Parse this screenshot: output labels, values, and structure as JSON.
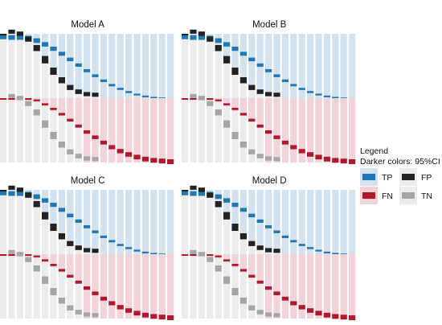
{
  "chart_data": {
    "type": "bar",
    "description_free": true,
    "n_thresholds": 21,
    "ylim_upper": [
      0,
      1
    ],
    "ylim_lower": [
      0,
      1
    ],
    "panels": [
      {
        "title": "Model A",
        "tp": [
          0.99,
          0.98,
          0.98,
          0.97,
          0.93,
          0.87,
          0.8,
          0.72,
          0.63,
          0.54,
          0.45,
          0.37,
          0.29,
          0.22,
          0.16,
          0.11,
          0.07,
          0.04,
          0.02,
          0.01,
          0.0
        ],
        "fp": [
          1.0,
          0.99,
          0.96,
          0.88,
          0.75,
          0.58,
          0.4,
          0.25,
          0.13,
          0.06,
          0.02,
          0.01,
          0.0,
          0.0,
          0.0,
          0.0,
          0.0,
          0.0,
          0.0,
          0.0,
          0.0
        ],
        "fn": [
          0.01,
          0.02,
          0.02,
          0.03,
          0.07,
          0.13,
          0.2,
          0.28,
          0.37,
          0.46,
          0.55,
          0.63,
          0.71,
          0.78,
          0.84,
          0.89,
          0.93,
          0.96,
          0.98,
          0.99,
          1.0
        ],
        "tn": [
          0.0,
          0.01,
          0.04,
          0.12,
          0.25,
          0.42,
          0.6,
          0.75,
          0.87,
          0.94,
          0.98,
          0.99,
          1.0,
          1.0,
          1.0,
          1.0,
          1.0,
          1.0,
          1.0,
          1.0,
          1.0
        ]
      },
      {
        "title": "Model B",
        "tp": [
          0.99,
          0.98,
          0.98,
          0.97,
          0.93,
          0.87,
          0.8,
          0.72,
          0.63,
          0.54,
          0.45,
          0.37,
          0.29,
          0.22,
          0.16,
          0.11,
          0.07,
          0.04,
          0.02,
          0.01,
          0.0
        ],
        "fp": [
          1.0,
          0.99,
          0.96,
          0.88,
          0.75,
          0.58,
          0.4,
          0.25,
          0.13,
          0.06,
          0.02,
          0.01,
          0.0,
          0.0,
          0.0,
          0.0,
          0.0,
          0.0,
          0.0,
          0.0,
          0.0
        ],
        "fn": [
          0.01,
          0.02,
          0.02,
          0.03,
          0.07,
          0.13,
          0.2,
          0.28,
          0.37,
          0.46,
          0.55,
          0.63,
          0.71,
          0.78,
          0.84,
          0.89,
          0.93,
          0.96,
          0.98,
          0.99,
          1.0
        ],
        "tn": [
          0.0,
          0.01,
          0.04,
          0.12,
          0.25,
          0.42,
          0.6,
          0.75,
          0.87,
          0.94,
          0.98,
          0.99,
          1.0,
          1.0,
          1.0,
          1.0,
          1.0,
          1.0,
          1.0,
          1.0,
          1.0
        ]
      },
      {
        "title": "Model C",
        "tp": [
          0.99,
          0.98,
          0.98,
          0.97,
          0.93,
          0.87,
          0.8,
          0.72,
          0.63,
          0.54,
          0.45,
          0.37,
          0.29,
          0.22,
          0.16,
          0.11,
          0.07,
          0.04,
          0.02,
          0.01,
          0.0
        ],
        "fp": [
          1.0,
          0.99,
          0.96,
          0.88,
          0.75,
          0.58,
          0.4,
          0.25,
          0.13,
          0.06,
          0.02,
          0.01,
          0.0,
          0.0,
          0.0,
          0.0,
          0.0,
          0.0,
          0.0,
          0.0,
          0.0
        ],
        "fn": [
          0.01,
          0.02,
          0.02,
          0.03,
          0.07,
          0.13,
          0.2,
          0.28,
          0.37,
          0.46,
          0.55,
          0.63,
          0.71,
          0.78,
          0.84,
          0.89,
          0.93,
          0.96,
          0.98,
          0.99,
          1.0
        ],
        "tn": [
          0.0,
          0.01,
          0.04,
          0.12,
          0.25,
          0.42,
          0.6,
          0.75,
          0.87,
          0.94,
          0.98,
          0.99,
          1.0,
          1.0,
          1.0,
          1.0,
          1.0,
          1.0,
          1.0,
          1.0,
          1.0
        ]
      },
      {
        "title": "Model D",
        "tp": [
          0.99,
          0.98,
          0.98,
          0.97,
          0.93,
          0.87,
          0.8,
          0.72,
          0.63,
          0.54,
          0.45,
          0.37,
          0.29,
          0.22,
          0.16,
          0.11,
          0.07,
          0.04,
          0.02,
          0.01,
          0.0
        ],
        "fp": [
          1.0,
          0.99,
          0.96,
          0.88,
          0.75,
          0.58,
          0.4,
          0.25,
          0.13,
          0.06,
          0.02,
          0.01,
          0.0,
          0.0,
          0.0,
          0.0,
          0.0,
          0.0,
          0.0,
          0.0,
          0.0
        ],
        "fn": [
          0.01,
          0.02,
          0.02,
          0.03,
          0.07,
          0.13,
          0.2,
          0.28,
          0.37,
          0.46,
          0.55,
          0.63,
          0.71,
          0.78,
          0.84,
          0.89,
          0.93,
          0.96,
          0.98,
          0.99,
          1.0
        ],
        "tn": [
          0.0,
          0.01,
          0.04,
          0.12,
          0.25,
          0.42,
          0.6,
          0.75,
          0.87,
          0.94,
          0.98,
          0.99,
          1.0,
          1.0,
          1.0,
          1.0,
          1.0,
          1.0,
          1.0,
          1.0,
          1.0
        ]
      }
    ],
    "ci_halfwidth": 0.025,
    "legend": {
      "title": "Legend",
      "subtitle": "Darker colors: 95%CI",
      "placement": "right",
      "items": [
        {
          "key": "tp",
          "label": "TP"
        },
        {
          "key": "fp",
          "label": "FP"
        },
        {
          "key": "fn",
          "label": "FN"
        },
        {
          "key": "tn",
          "label": "TN"
        }
      ]
    },
    "colors": {
      "tp_light": "#d3e2ef",
      "tp_dark": "#1f78b4",
      "fp_light": "#ececec",
      "fp_dark": "#222222",
      "fn_light": "#f2d3da",
      "fn_dark": "#b2182b",
      "tn_light": "#ececec",
      "tn_dark": "#a6a6a6"
    }
  }
}
